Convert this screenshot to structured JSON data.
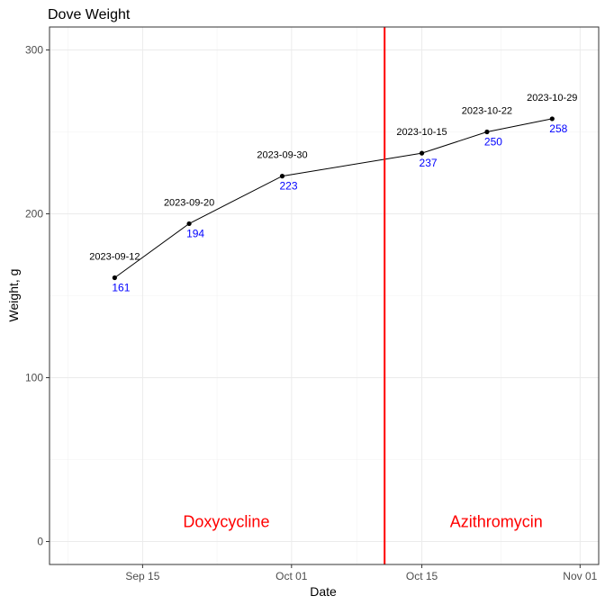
{
  "chart_data": {
    "type": "line",
    "title": "Dove Weight",
    "xlabel": "Date",
    "ylabel": "Weight, g",
    "x_ticks": [
      {
        "date": "2023-09-15",
        "label": "Sep 15"
      },
      {
        "date": "2023-10-01",
        "label": "Oct 01"
      },
      {
        "date": "2023-10-15",
        "label": "Oct 15"
      },
      {
        "date": "2023-11-01",
        "label": "Nov 01"
      }
    ],
    "xlim": [
      "2023-09-05",
      "2023-11-03"
    ],
    "y_ticks": [
      0,
      100,
      200,
      300
    ],
    "ylim": [
      -14,
      314
    ],
    "grid": true,
    "points": [
      {
        "date": "2023-09-12",
        "value": 161
      },
      {
        "date": "2023-09-20",
        "value": 194
      },
      {
        "date": "2023-09-30",
        "value": 223
      },
      {
        "date": "2023-10-15",
        "value": 237
      },
      {
        "date": "2023-10-22",
        "value": 250
      },
      {
        "date": "2023-10-29",
        "value": 258
      }
    ],
    "vline": {
      "date": "2023-10-11",
      "color": "#ff0000"
    },
    "annotations": [
      {
        "text": "Doxycycline",
        "date": "2023-09-24",
        "value": 10,
        "color": "#ff0000"
      },
      {
        "text": "Azithromycin",
        "date": "2023-10-23",
        "value": 10,
        "color": "#ff0000"
      }
    ],
    "line_color": "#000000",
    "value_label_color": "#0000ff"
  }
}
